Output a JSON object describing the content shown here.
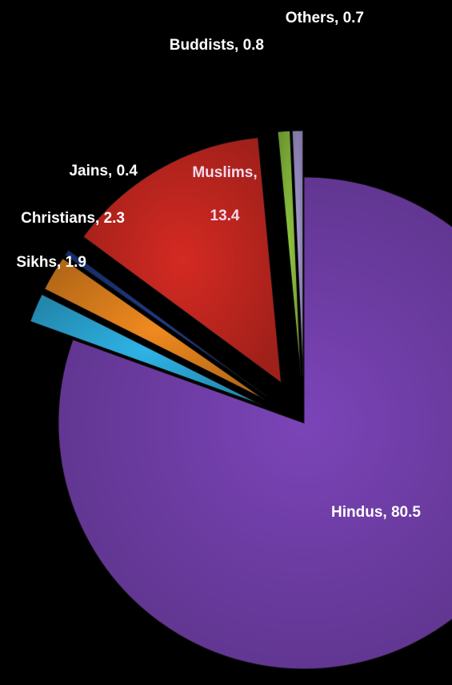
{
  "chart_data": {
    "type": "pie",
    "exploded": true,
    "start_angle_deg": 0,
    "direction": "clockwise",
    "slices": [
      {
        "name": "Hindus",
        "value": 80.5,
        "label": "Hindus, 80.5",
        "color": "#7B44B8",
        "label_color": "#FFFFFF",
        "label_placement": "inside",
        "explode": 0
      },
      {
        "name": "Sikhs",
        "value": 1.9,
        "label": "Sikhs, 1.9",
        "color": "#2EB4E6",
        "label_color": "#FFFFFF",
        "label_placement": "outside",
        "explode": 1
      },
      {
        "name": "Christians",
        "value": 2.3,
        "label": "Christians, 2.3",
        "color": "#F08A1F",
        "label_color": "#FFFFFF",
        "label_placement": "outside",
        "explode": 1
      },
      {
        "name": "Jains",
        "value": 0.4,
        "label": "Jains, 0.4",
        "color": "#1E3A8A",
        "label_color": "#FFFFFF",
        "label_placement": "outside",
        "explode": 1
      },
      {
        "name": "Muslims",
        "value": 13.4,
        "label": "Muslims, 13.4",
        "color": "#D42A22",
        "label_color": "#F3D9EC",
        "label_placement": "inside",
        "explode": 1
      },
      {
        "name": "Buddists",
        "value": 0.8,
        "label": "Buddists, 0.8",
        "color": "#8FC63F",
        "label_color": "#FFFFFF",
        "label_placement": "outside",
        "explode": 1
      },
      {
        "name": "Others",
        "value": 0.7,
        "label": "Others, 0.7",
        "color": "#A89BD6",
        "label_color": "#FFFFFF",
        "label_placement": "outside",
        "explode": 1
      }
    ],
    "background": "#000000",
    "legend": "none",
    "title": ""
  }
}
